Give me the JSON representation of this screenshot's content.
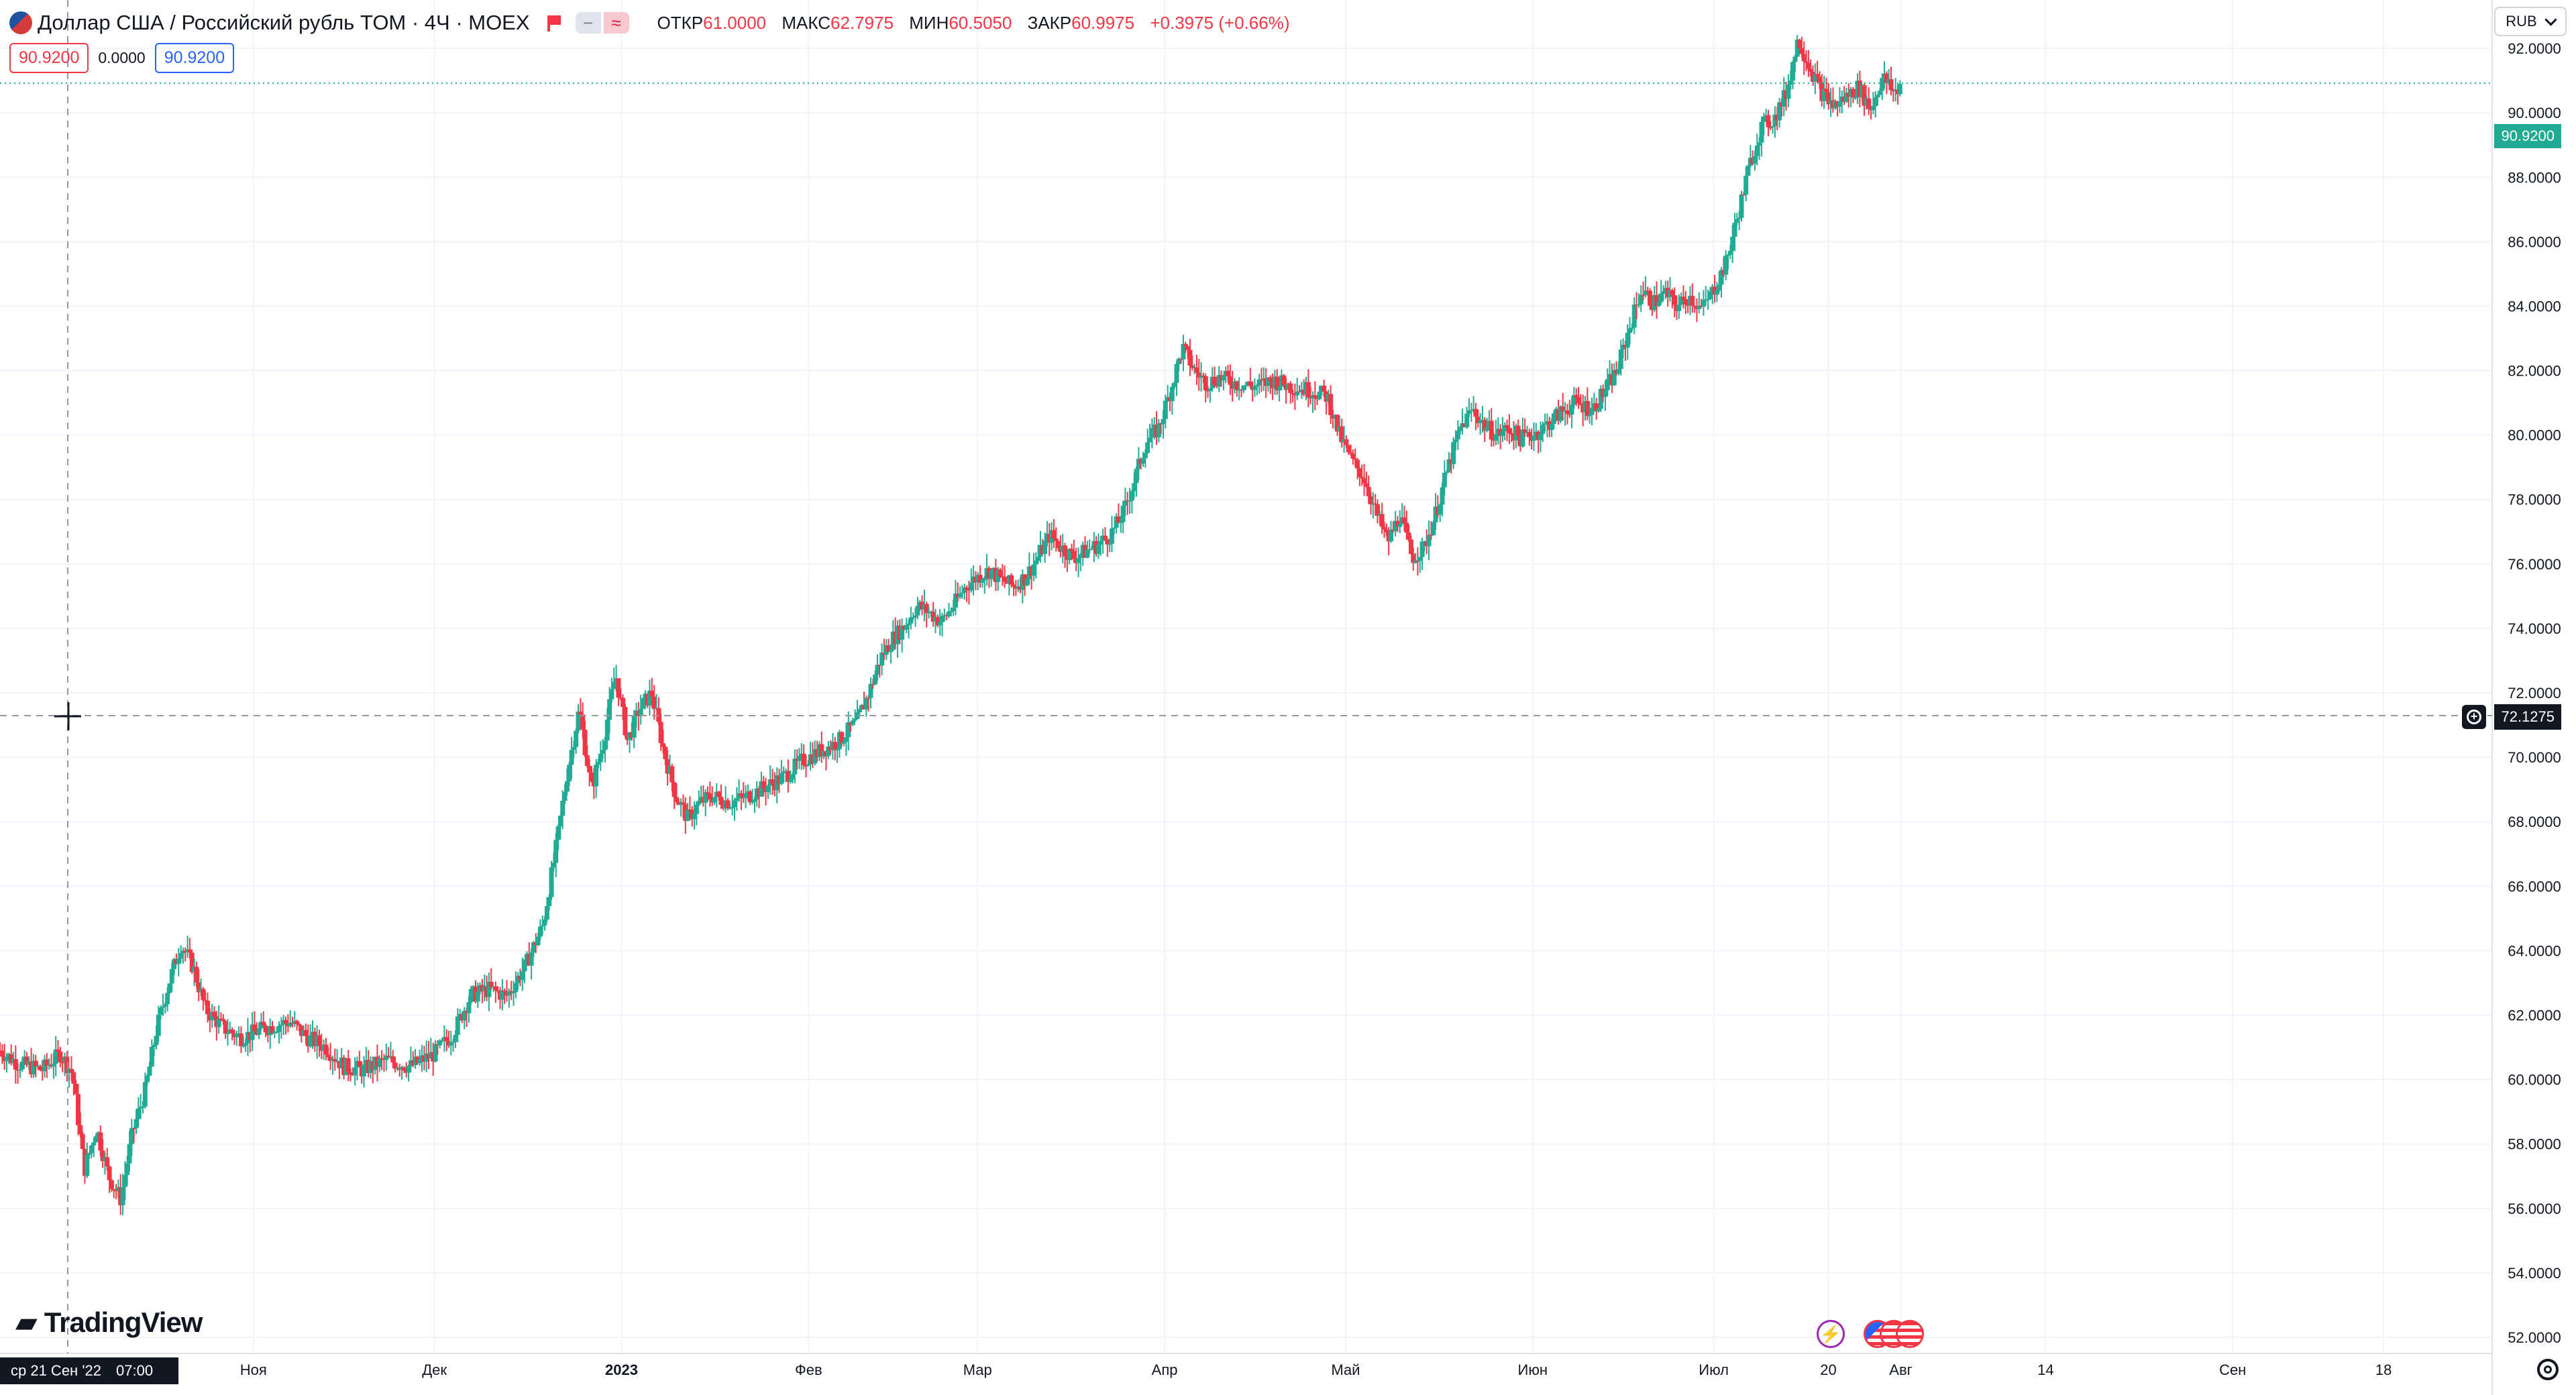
{
  "header": {
    "title": "Доллар США / Российский рубль TOM · 4Ч · MOEX",
    "ohlc": [
      {
        "label": "ОТКР",
        "value": "61.0000"
      },
      {
        "label": "МАКС",
        "value": "62.7975"
      },
      {
        "label": "МИН",
        "value": "60.5050"
      },
      {
        "label": "ЗАКР",
        "value": "60.9975"
      },
      {
        "label": "",
        "value": "+0.3975 (+0.66%)"
      }
    ],
    "currency": "RUB"
  },
  "indicators": {
    "first": "90.9200",
    "second": "0.0000",
    "third": "90.9200"
  },
  "brand": "TradingView",
  "crosshair": {
    "date": "ср 21 Сен '22",
    "time": "07:00",
    "price": "72.1275"
  },
  "last_price": "90.9200",
  "colors": {
    "up": "#22ab94",
    "down": "#f23645",
    "grid": "#f0f3fa",
    "text": "#131722"
  },
  "chart_data": {
    "type": "candlestick",
    "title": "Доллар США / Российский рубль TOM · 4Ч · MOEX",
    "ylim": [
      51.5,
      93.5
    ],
    "y_ticks": [
      "52.0000",
      "54.0000",
      "56.0000",
      "58.0000",
      "60.0000",
      "62.0000",
      "64.0000",
      "66.0000",
      "68.0000",
      "70.0000",
      "72.0000",
      "74.0000",
      "76.0000",
      "78.0000",
      "80.0000",
      "82.0000",
      "84.0000",
      "86.0000",
      "88.0000",
      "90.0000",
      "92.0000"
    ],
    "x_labels": [
      {
        "label": "Ноя",
        "pos": 42
      },
      {
        "label": "Дек",
        "pos": 72
      },
      {
        "label": "2023",
        "pos": 103
      },
      {
        "label": "Фев",
        "pos": 134
      },
      {
        "label": "Мар",
        "pos": 162
      },
      {
        "label": "Апр",
        "pos": 193
      },
      {
        "label": "Май",
        "pos": 223
      },
      {
        "label": "Июн",
        "pos": 254
      },
      {
        "label": "Июл",
        "pos": 284
      },
      {
        "label": "20",
        "pos": 303
      },
      {
        "label": "Авг",
        "pos": 315
      },
      {
        "label": "14",
        "pos": 339
      },
      {
        "label": "Сен",
        "pos": 370
      },
      {
        "label": "18",
        "pos": 395
      }
    ],
    "x_range": [
      0,
      413
    ],
    "price_path": [
      [
        0,
        60.9
      ],
      [
        3,
        60.5
      ],
      [
        7,
        60.3
      ],
      [
        10,
        60.8
      ],
      [
        12,
        60.2
      ],
      [
        14,
        57.2
      ],
      [
        16,
        58.5
      ],
      [
        18,
        57.0
      ],
      [
        20,
        56.3
      ],
      [
        22,
        58.4
      ],
      [
        24,
        59.6
      ],
      [
        26,
        61.6
      ],
      [
        28,
        63.0
      ],
      [
        30,
        64.2
      ],
      [
        32,
        63.5
      ],
      [
        34,
        62.2
      ],
      [
        37,
        61.6
      ],
      [
        40,
        61.3
      ],
      [
        44,
        61.6
      ],
      [
        48,
        61.8
      ],
      [
        51,
        61.3
      ],
      [
        54,
        61.0
      ],
      [
        57,
        60.4
      ],
      [
        60,
        60.3
      ],
      [
        64,
        60.6
      ],
      [
        68,
        60.4
      ],
      [
        72,
        60.8
      ],
      [
        75,
        61.4
      ],
      [
        78,
        62.6
      ],
      [
        81,
        62.8
      ],
      [
        84,
        62.6
      ],
      [
        87,
        63.5
      ],
      [
        90,
        64.8
      ],
      [
        92,
        67.0
      ],
      [
        94,
        69.5
      ],
      [
        96,
        71.5
      ],
      [
        98,
        69.0
      ],
      [
        100,
        70.5
      ],
      [
        102,
        72.6
      ],
      [
        104,
        70.5
      ],
      [
        106,
        71.5
      ],
      [
        108,
        72.0
      ],
      [
        110,
        70.2
      ],
      [
        112,
        68.8
      ],
      [
        114,
        68.1
      ],
      [
        116,
        68.6
      ],
      [
        118,
        68.8
      ],
      [
        121,
        68.6
      ],
      [
        124,
        68.8
      ],
      [
        127,
        69.1
      ],
      [
        130,
        69.4
      ],
      [
        133,
        69.9
      ],
      [
        136,
        70.2
      ],
      [
        139,
        70.5
      ],
      [
        142,
        71.1
      ],
      [
        144,
        72.0
      ],
      [
        146,
        73.1
      ],
      [
        148,
        73.7
      ],
      [
        150,
        74.1
      ],
      [
        152,
        74.7
      ],
      [
        154,
        74.5
      ],
      [
        156,
        74.2
      ],
      [
        158,
        74.7
      ],
      [
        160,
        75.3
      ],
      [
        162,
        75.6
      ],
      [
        164,
        75.8
      ],
      [
        166,
        75.5
      ],
      [
        168,
        75.3
      ],
      [
        170,
        75.6
      ],
      [
        172,
        76.2
      ],
      [
        174,
        76.9
      ],
      [
        176,
        76.5
      ],
      [
        178,
        76.2
      ],
      [
        180,
        76.4
      ],
      [
        182,
        76.6
      ],
      [
        184,
        76.9
      ],
      [
        186,
        77.5
      ],
      [
        188,
        78.6
      ],
      [
        190,
        79.8
      ],
      [
        192,
        80.2
      ],
      [
        194,
        81.4
      ],
      [
        196,
        82.7
      ],
      [
        198,
        82.0
      ],
      [
        200,
        81.6
      ],
      [
        202,
        81.8
      ],
      [
        205,
        81.6
      ],
      [
        208,
        81.5
      ],
      [
        211,
        81.7
      ],
      [
        214,
        81.5
      ],
      [
        217,
        81.4
      ],
      [
        220,
        81.2
      ],
      [
        222,
        80.0
      ],
      [
        224,
        79.2
      ],
      [
        226,
        78.7
      ],
      [
        228,
        77.6
      ],
      [
        230,
        76.7
      ],
      [
        232,
        77.5
      ],
      [
        234,
        76.2
      ],
      [
        236,
        76.5
      ],
      [
        238,
        77.6
      ],
      [
        240,
        79.0
      ],
      [
        242,
        80.2
      ],
      [
        244,
        80.8
      ],
      [
        246,
        80.3
      ],
      [
        248,
        80.0
      ],
      [
        250,
        80.2
      ],
      [
        252,
        79.9
      ],
      [
        255,
        80.1
      ],
      [
        258,
        80.6
      ],
      [
        261,
        81.0
      ],
      [
        264,
        80.8
      ],
      [
        266,
        81.4
      ],
      [
        268,
        82.0
      ],
      [
        270,
        83.3
      ],
      [
        272,
        84.5
      ],
      [
        274,
        84.1
      ],
      [
        276,
        84.4
      ],
      [
        278,
        84.0
      ],
      [
        280,
        84.3
      ],
      [
        282,
        83.9
      ],
      [
        284,
        84.5
      ],
      [
        286,
        85.3
      ],
      [
        288,
        86.8
      ],
      [
        290,
        88.4
      ],
      [
        292,
        89.6
      ],
      [
        294,
        89.8
      ],
      [
        296,
        90.6
      ],
      [
        298,
        92.3
      ],
      [
        300,
        91.4
      ],
      [
        302,
        90.6
      ],
      [
        304,
        90.2
      ],
      [
        306,
        90.5
      ],
      [
        308,
        90.8
      ],
      [
        310,
        90.1
      ],
      [
        312,
        91.1
      ],
      [
        314,
        90.6
      ],
      [
        315,
        90.9
      ]
    ]
  }
}
